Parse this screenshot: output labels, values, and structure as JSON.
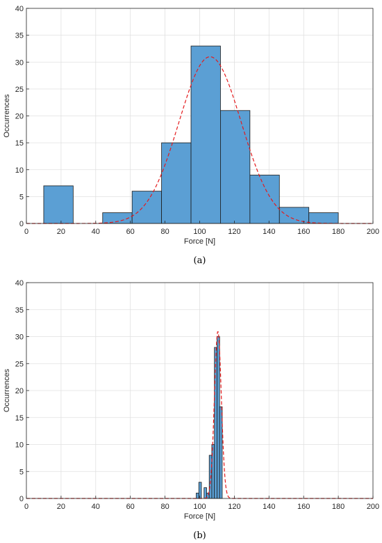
{
  "colors": {
    "bar_fill": "#5b9fd4",
    "bar_edge": "#1a1a1a",
    "fit_line": "#e41a1c",
    "grid": "#e0e0e0",
    "axis": "#262626"
  },
  "chart_data": [
    {
      "type": "bar",
      "panel_label": "(a)",
      "xlabel": "Force [N]",
      "ylabel": "Occurrences",
      "xlim": [
        0,
        200
      ],
      "ylim": [
        0,
        40
      ],
      "xticks": [
        0,
        20,
        40,
        60,
        80,
        100,
        120,
        140,
        160,
        180,
        200
      ],
      "yticks": [
        0,
        5,
        10,
        15,
        20,
        25,
        30,
        35,
        40
      ],
      "grid": true,
      "bins": [
        {
          "x0": 10,
          "x1": 27,
          "count": 7
        },
        {
          "x0": 27,
          "x1": 44,
          "count": 0
        },
        {
          "x0": 44,
          "x1": 61,
          "count": 2
        },
        {
          "x0": 61,
          "x1": 78,
          "count": 6
        },
        {
          "x0": 78,
          "x1": 95,
          "count": 15
        },
        {
          "x0": 95,
          "x1": 112,
          "count": 33
        },
        {
          "x0": 112,
          "x1": 129,
          "count": 21
        },
        {
          "x0": 129,
          "x1": 146,
          "count": 9
        },
        {
          "x0": 146,
          "x1": 163,
          "count": 3
        },
        {
          "x0": 163,
          "x1": 180,
          "count": 2
        }
      ],
      "fit": {
        "type": "normal",
        "mean": 106,
        "peak": 31,
        "sd": 18
      }
    },
    {
      "type": "bar",
      "panel_label": "(b)",
      "xlabel": "Force [N]",
      "ylabel": "Occurrences",
      "xlim": [
        0,
        200
      ],
      "ylim": [
        0,
        40
      ],
      "xticks": [
        0,
        20,
        40,
        60,
        80,
        100,
        120,
        140,
        160,
        180,
        200
      ],
      "yticks": [
        0,
        5,
        10,
        15,
        20,
        25,
        30,
        35,
        40
      ],
      "grid": true,
      "bins": [
        {
          "x0": 98,
          "x1": 99.5,
          "count": 1
        },
        {
          "x0": 99.5,
          "x1": 101,
          "count": 3
        },
        {
          "x0": 101,
          "x1": 102.5,
          "count": 0
        },
        {
          "x0": 102.5,
          "x1": 104,
          "count": 2
        },
        {
          "x0": 104,
          "x1": 105.5,
          "count": 1
        },
        {
          "x0": 105.5,
          "x1": 107,
          "count": 8
        },
        {
          "x0": 107,
          "x1": 108.5,
          "count": 10
        },
        {
          "x0": 108.5,
          "x1": 110,
          "count": 28
        },
        {
          "x0": 110,
          "x1": 111.5,
          "count": 30
        },
        {
          "x0": 111.5,
          "x1": 113,
          "count": 17
        }
      ],
      "fit": {
        "type": "normal",
        "mean": 110.5,
        "peak": 31,
        "sd": 2
      }
    }
  ]
}
